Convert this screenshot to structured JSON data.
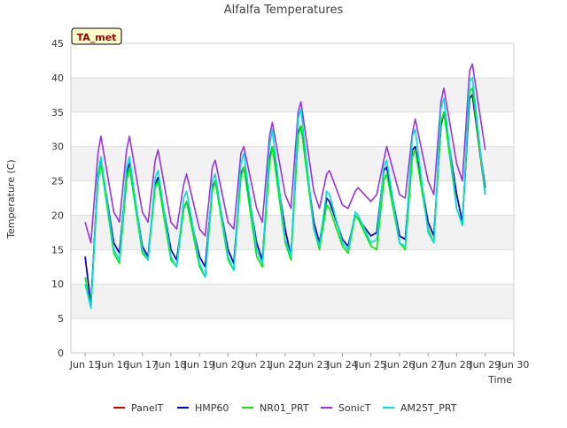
{
  "chart_data": {
    "type": "line",
    "title": "Alfalfa Temperatures",
    "xlabel": "Time",
    "ylabel": "Temperature (C)",
    "badge": "TA_met",
    "xlim": [
      14.5,
      30
    ],
    "ylim": [
      0,
      45
    ],
    "x_ticks": [
      15,
      16,
      17,
      18,
      19,
      20,
      21,
      22,
      23,
      24,
      25,
      26,
      27,
      28,
      29,
      30
    ],
    "x_tick_labels": [
      "Jun 15",
      "Jun 16",
      "Jun 17",
      "Jun 18",
      "Jun 19",
      "Jun 20",
      "Jun 21",
      "Jun 22",
      "Jun 23",
      "Jun 24",
      "Jun 25",
      "Jun 26",
      "Jun 27",
      "Jun 28",
      "Jun 29",
      "Jun 30"
    ],
    "y_ticks": [
      0,
      5,
      10,
      15,
      20,
      25,
      30,
      35,
      40,
      45
    ],
    "y_tick_labels": [
      "0",
      "5",
      "10",
      "15",
      "20",
      "25",
      "30",
      "35",
      "40",
      "45"
    ],
    "grid": true,
    "legend_position": "bottom",
    "x": [
      15.0,
      15.2,
      15.45,
      15.55,
      16.0,
      16.2,
      16.45,
      16.55,
      17.0,
      17.2,
      17.45,
      17.55,
      18.0,
      18.2,
      18.45,
      18.55,
      19.0,
      19.2,
      19.45,
      19.55,
      20.0,
      20.2,
      20.45,
      20.55,
      21.0,
      21.2,
      21.45,
      21.55,
      22.0,
      22.2,
      22.45,
      22.55,
      23.0,
      23.2,
      23.45,
      23.55,
      24.0,
      24.2,
      24.45,
      24.55,
      25.0,
      25.2,
      25.45,
      25.55,
      26.0,
      26.2,
      26.45,
      26.55,
      27.0,
      27.2,
      27.45,
      27.55,
      28.0,
      28.2,
      28.45,
      28.55,
      29.0
    ],
    "series": [
      {
        "name": "PanelT",
        "color": "#cc0000",
        "values": [
          14,
          7,
          26,
          28,
          16,
          14.5,
          26,
          27.5,
          15.5,
          14,
          24.5,
          25.5,
          15,
          13.5,
          21,
          22,
          14,
          12.5,
          24,
          25,
          15,
          13,
          26,
          27,
          16,
          13.5,
          28,
          30,
          18,
          14,
          32,
          33,
          19,
          16,
          22.5,
          22,
          16.5,
          15.5,
          20,
          19.5,
          17,
          17.5,
          26.5,
          27,
          17,
          16.5,
          29.5,
          30,
          19,
          17,
          33,
          35,
          23,
          19,
          37,
          37.5,
          23
        ]
      },
      {
        "name": "HMP60",
        "color": "#0000cc",
        "values": [
          14,
          7,
          26,
          28,
          16,
          14.5,
          26,
          27.5,
          15.5,
          14,
          24.5,
          25.5,
          15,
          13.5,
          21,
          22,
          14,
          12.5,
          24,
          25,
          15,
          13,
          26,
          27,
          16,
          13.5,
          28,
          30,
          18,
          14,
          32,
          33,
          19,
          16,
          22.5,
          22,
          16.5,
          15.5,
          20,
          19.5,
          17,
          17.5,
          26.5,
          27,
          17,
          16.5,
          29.5,
          30,
          19,
          17,
          33,
          35,
          23,
          19,
          37,
          37.5,
          24
        ]
      },
      {
        "name": "NR01_PRT",
        "color": "#00ee00",
        "values": [
          11,
          6.5,
          25,
          27.5,
          14.5,
          13,
          25,
          27,
          14.5,
          13.5,
          24,
          25,
          13.5,
          12.5,
          21,
          22,
          12.5,
          11,
          23.5,
          25,
          13.5,
          12,
          25.5,
          27,
          14,
          12.5,
          27.5,
          30,
          16,
          13.5,
          31.5,
          33,
          18,
          15,
          21.5,
          21,
          15.5,
          14.5,
          20,
          19.5,
          15.5,
          15,
          25,
          26,
          16,
          15,
          28.5,
          29.5,
          18,
          16,
          33.5,
          35,
          21,
          18.5,
          38,
          38.5,
          23
        ]
      },
      {
        "name": "SonicT",
        "color": "#9933dd",
        "values": [
          19,
          16,
          29,
          31.5,
          20.5,
          19,
          29.5,
          31.5,
          20.5,
          19,
          28,
          29.5,
          19,
          18,
          24.5,
          26,
          18,
          17,
          27,
          28,
          19,
          18,
          29,
          30,
          21,
          19,
          31.5,
          33.5,
          23,
          21,
          35,
          36.5,
          23.5,
          21,
          26,
          26.5,
          21.5,
          21,
          23.5,
          24,
          22,
          23,
          28,
          30,
          23,
          22.5,
          32,
          34,
          25,
          23,
          36.5,
          38.5,
          27.5,
          25,
          41,
          42,
          29.5
        ]
      },
      {
        "name": "AM25T_PRT",
        "color": "#00dddd",
        "values": [
          10,
          6.5,
          26,
          28.5,
          15,
          13.5,
          27,
          28.5,
          15,
          13.5,
          25.5,
          26.5,
          14,
          12.5,
          22.5,
          23.5,
          13,
          11,
          25,
          26,
          14,
          12,
          27.5,
          29,
          15,
          13,
          30,
          32.5,
          16.5,
          14,
          34,
          35.5,
          18,
          15.5,
          23.5,
          23,
          16,
          15,
          20.5,
          20,
          16,
          16.5,
          27,
          28,
          16,
          15.5,
          31.5,
          32.5,
          17.5,
          16,
          35.5,
          37,
          21,
          18.5,
          39.5,
          40,
          23
        ]
      }
    ]
  }
}
